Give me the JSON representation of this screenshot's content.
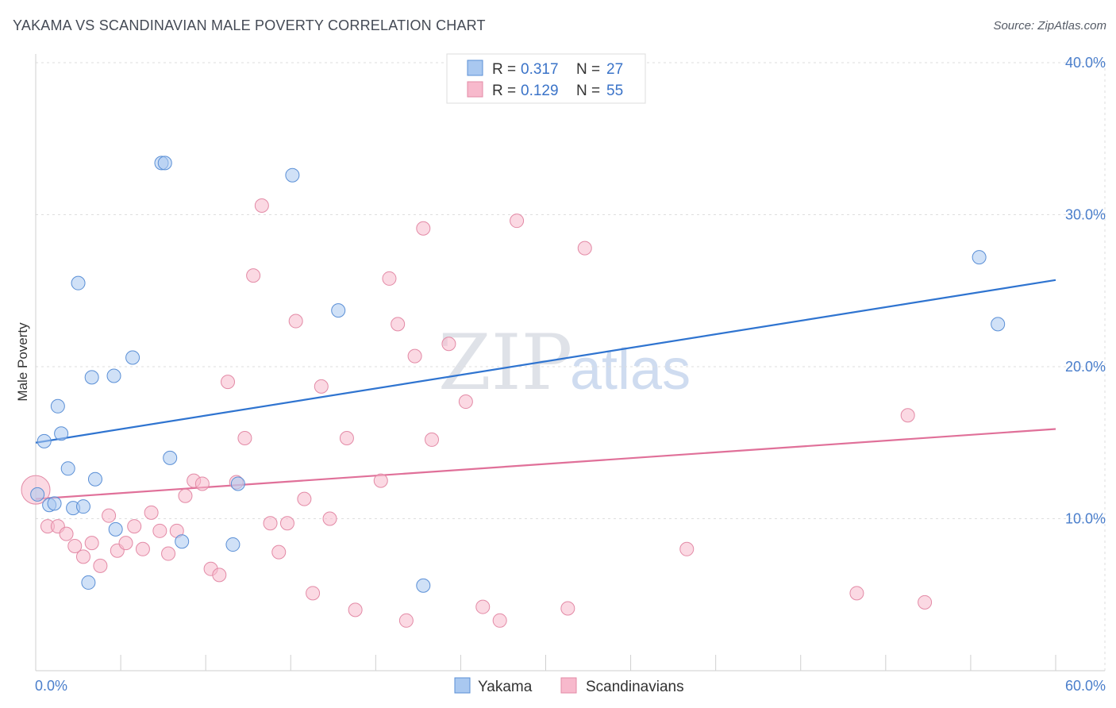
{
  "header": {
    "title": "YAKAMA VS SCANDINAVIAN MALE POVERTY CORRELATION CHART",
    "source": "Source: ZipAtlas.com"
  },
  "watermark": {
    "zip": "ZIP",
    "atlas": "atlas"
  },
  "legend": {
    "rows": [
      {
        "r_label": "R = ",
        "r_value": "0.317",
        "n_label": "N = ",
        "n_value": "27",
        "color": "#a9c8f0"
      },
      {
        "r_label": "R = ",
        "r_value": "0.129",
        "n_label": "N = ",
        "n_value": "55",
        "color": "#f7b9cc"
      }
    ]
  },
  "chart_data": {
    "type": "scatter",
    "ylabel": "Male Poverty",
    "xlim": [
      0,
      60
    ],
    "ylim": [
      0,
      40
    ],
    "x_tick_labels": [
      "0.0%",
      "60.0%"
    ],
    "y_ticks": [
      {
        "value": 10,
        "label": "10.0%"
      },
      {
        "value": 20,
        "label": "20.0%"
      },
      {
        "value": 30,
        "label": "30.0%"
      },
      {
        "value": 40,
        "label": "40.0%"
      }
    ],
    "grid": true,
    "legend_position": "top-center",
    "series": [
      {
        "name": "Yakama",
        "color": "#a9c8f0",
        "stroke": "#5a8fd6",
        "line_color": "#2f74d0",
        "trend": [
          [
            0,
            15.0
          ],
          [
            60,
            25.7
          ]
        ],
        "points": [
          [
            0.1,
            11.6
          ],
          [
            0.5,
            15.1
          ],
          [
            0.8,
            10.9
          ],
          [
            1.1,
            11.0
          ],
          [
            1.3,
            17.4
          ],
          [
            1.5,
            15.6
          ],
          [
            1.9,
            13.3
          ],
          [
            2.2,
            10.7
          ],
          [
            2.5,
            25.5
          ],
          [
            2.8,
            10.8
          ],
          [
            3.1,
            5.8
          ],
          [
            3.3,
            19.3
          ],
          [
            3.5,
            12.6
          ],
          [
            4.6,
            19.4
          ],
          [
            4.7,
            9.3
          ],
          [
            5.7,
            20.6
          ],
          [
            7.4,
            33.4
          ],
          [
            7.6,
            33.4
          ],
          [
            7.9,
            14.0
          ],
          [
            8.6,
            8.5
          ],
          [
            11.6,
            8.3
          ],
          [
            11.9,
            12.3
          ],
          [
            15.1,
            32.6
          ],
          [
            17.8,
            23.7
          ],
          [
            22.8,
            5.6
          ],
          [
            55.5,
            27.2
          ],
          [
            56.6,
            22.8
          ]
        ]
      },
      {
        "name": "Scandinavians",
        "color": "#f7b9cc",
        "stroke": "#e38aa6",
        "line_color": "#e07099",
        "trend": [
          [
            0,
            11.3
          ],
          [
            60,
            15.9
          ]
        ],
        "points": [
          [
            0.0,
            11.9
          ],
          [
            0.7,
            9.5
          ],
          [
            1.3,
            9.5
          ],
          [
            1.8,
            9.0
          ],
          [
            2.3,
            8.2
          ],
          [
            2.8,
            7.5
          ],
          [
            3.3,
            8.4
          ],
          [
            3.8,
            6.9
          ],
          [
            4.3,
            10.2
          ],
          [
            4.8,
            7.9
          ],
          [
            5.3,
            8.4
          ],
          [
            5.8,
            9.5
          ],
          [
            6.3,
            8.0
          ],
          [
            6.8,
            10.4
          ],
          [
            7.3,
            9.2
          ],
          [
            7.8,
            7.7
          ],
          [
            8.3,
            9.2
          ],
          [
            8.8,
            11.5
          ],
          [
            9.3,
            12.5
          ],
          [
            9.8,
            12.3
          ],
          [
            10.3,
            6.7
          ],
          [
            10.8,
            6.3
          ],
          [
            11.3,
            19.0
          ],
          [
            11.8,
            12.4
          ],
          [
            12.3,
            15.3
          ],
          [
            12.8,
            26.0
          ],
          [
            13.3,
            30.6
          ],
          [
            13.8,
            9.7
          ],
          [
            14.3,
            7.8
          ],
          [
            14.8,
            9.7
          ],
          [
            15.3,
            23.0
          ],
          [
            15.8,
            11.3
          ],
          [
            16.3,
            5.1
          ],
          [
            16.8,
            18.7
          ],
          [
            17.3,
            10.0
          ],
          [
            18.3,
            15.3
          ],
          [
            18.8,
            4.0
          ],
          [
            20.3,
            12.5
          ],
          [
            20.8,
            25.8
          ],
          [
            21.3,
            22.8
          ],
          [
            21.8,
            3.3
          ],
          [
            22.3,
            20.7
          ],
          [
            22.8,
            29.1
          ],
          [
            23.3,
            15.2
          ],
          [
            24.3,
            21.5
          ],
          [
            25.3,
            17.7
          ],
          [
            26.3,
            4.2
          ],
          [
            27.3,
            3.3
          ],
          [
            28.3,
            29.6
          ],
          [
            31.3,
            4.1
          ],
          [
            32.3,
            27.8
          ],
          [
            38.3,
            8.0
          ],
          [
            48.3,
            5.1
          ],
          [
            51.3,
            16.8
          ],
          [
            52.3,
            4.5
          ]
        ]
      }
    ]
  }
}
